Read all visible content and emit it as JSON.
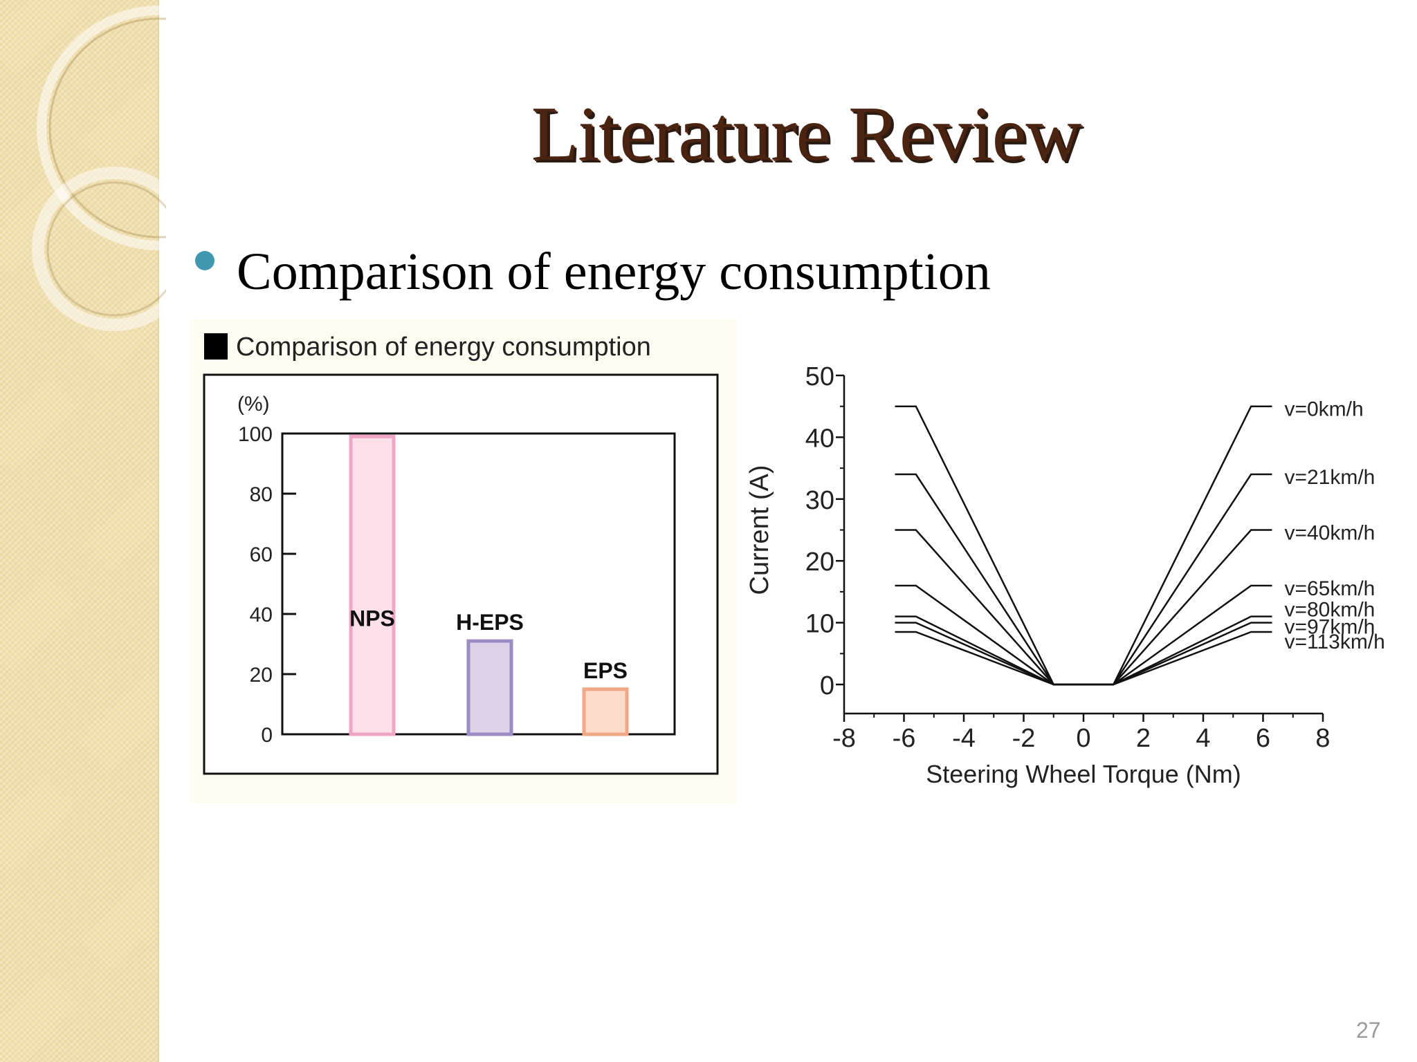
{
  "slide": {
    "title": "Literature Review",
    "bullet": "Comparison of energy consumption",
    "page_number": "27"
  },
  "colors": {
    "title": "#4a2311",
    "bullet_dot": "#3f98b0",
    "sidebar": "#f1e0b0"
  },
  "chart_data": [
    {
      "type": "bar",
      "title": "Comparison of energy consumption",
      "ylabel": "(%)",
      "ylim": [
        0,
        100
      ],
      "yticks": [
        0,
        20,
        40,
        60,
        80,
        100
      ],
      "categories": [
        "NPS",
        "H-EPS",
        "EPS"
      ],
      "values": [
        99,
        31,
        15
      ],
      "bar_colors": [
        {
          "fill": "#fde0ea",
          "stroke": "#eea6c4"
        },
        {
          "fill": "#ddd3e8",
          "stroke": "#9c8cc4"
        },
        {
          "fill": "#fddccb",
          "stroke": "#f1a887"
        }
      ],
      "grid": false
    },
    {
      "type": "line",
      "xlabel": "Steering Wheel Torque (Nm)",
      "ylabel": "Current (A)",
      "xlim": [
        -8,
        8
      ],
      "ylim": [
        0,
        50
      ],
      "xticks": [
        -8,
        -6,
        -4,
        -2,
        0,
        2,
        4,
        6,
        8
      ],
      "yticks": [
        0,
        10,
        20,
        30,
        40,
        50
      ],
      "grid": false,
      "legend": "right",
      "series": [
        {
          "name": "v=0km/h",
          "x": [
            -6.3,
            -5.6,
            -1,
            1,
            5.6,
            6.3
          ],
          "y": [
            45,
            45,
            0,
            0,
            45,
            45
          ]
        },
        {
          "name": "v=21km/h",
          "x": [
            -6.3,
            -5.6,
            -1,
            1,
            5.6,
            6.3
          ],
          "y": [
            34,
            34,
            0,
            0,
            34,
            34
          ]
        },
        {
          "name": "v=40km/h",
          "x": [
            -6.3,
            -5.6,
            -1,
            1,
            5.6,
            6.3
          ],
          "y": [
            25,
            25,
            0,
            0,
            25,
            25
          ]
        },
        {
          "name": "v=65km/h",
          "x": [
            -6.3,
            -5.6,
            -1,
            1,
            5.6,
            6.3
          ],
          "y": [
            16,
            16,
            0,
            0,
            16,
            16
          ]
        },
        {
          "name": "v=80km/h",
          "x": [
            -6.3,
            -5.6,
            -1,
            1,
            5.6,
            6.3
          ],
          "y": [
            11,
            11,
            0,
            0,
            11,
            11
          ]
        },
        {
          "name": "v=97km/h",
          "x": [
            -6.3,
            -5.6,
            -1,
            1,
            5.6,
            6.3
          ],
          "y": [
            10,
            10,
            0,
            0,
            10,
            10
          ]
        },
        {
          "name": "v=113km/h",
          "x": [
            -6.3,
            -5.6,
            -1,
            1,
            5.6,
            6.3
          ],
          "y": [
            8.5,
            8.5,
            0,
            0,
            8.5,
            8.5
          ]
        }
      ]
    }
  ]
}
